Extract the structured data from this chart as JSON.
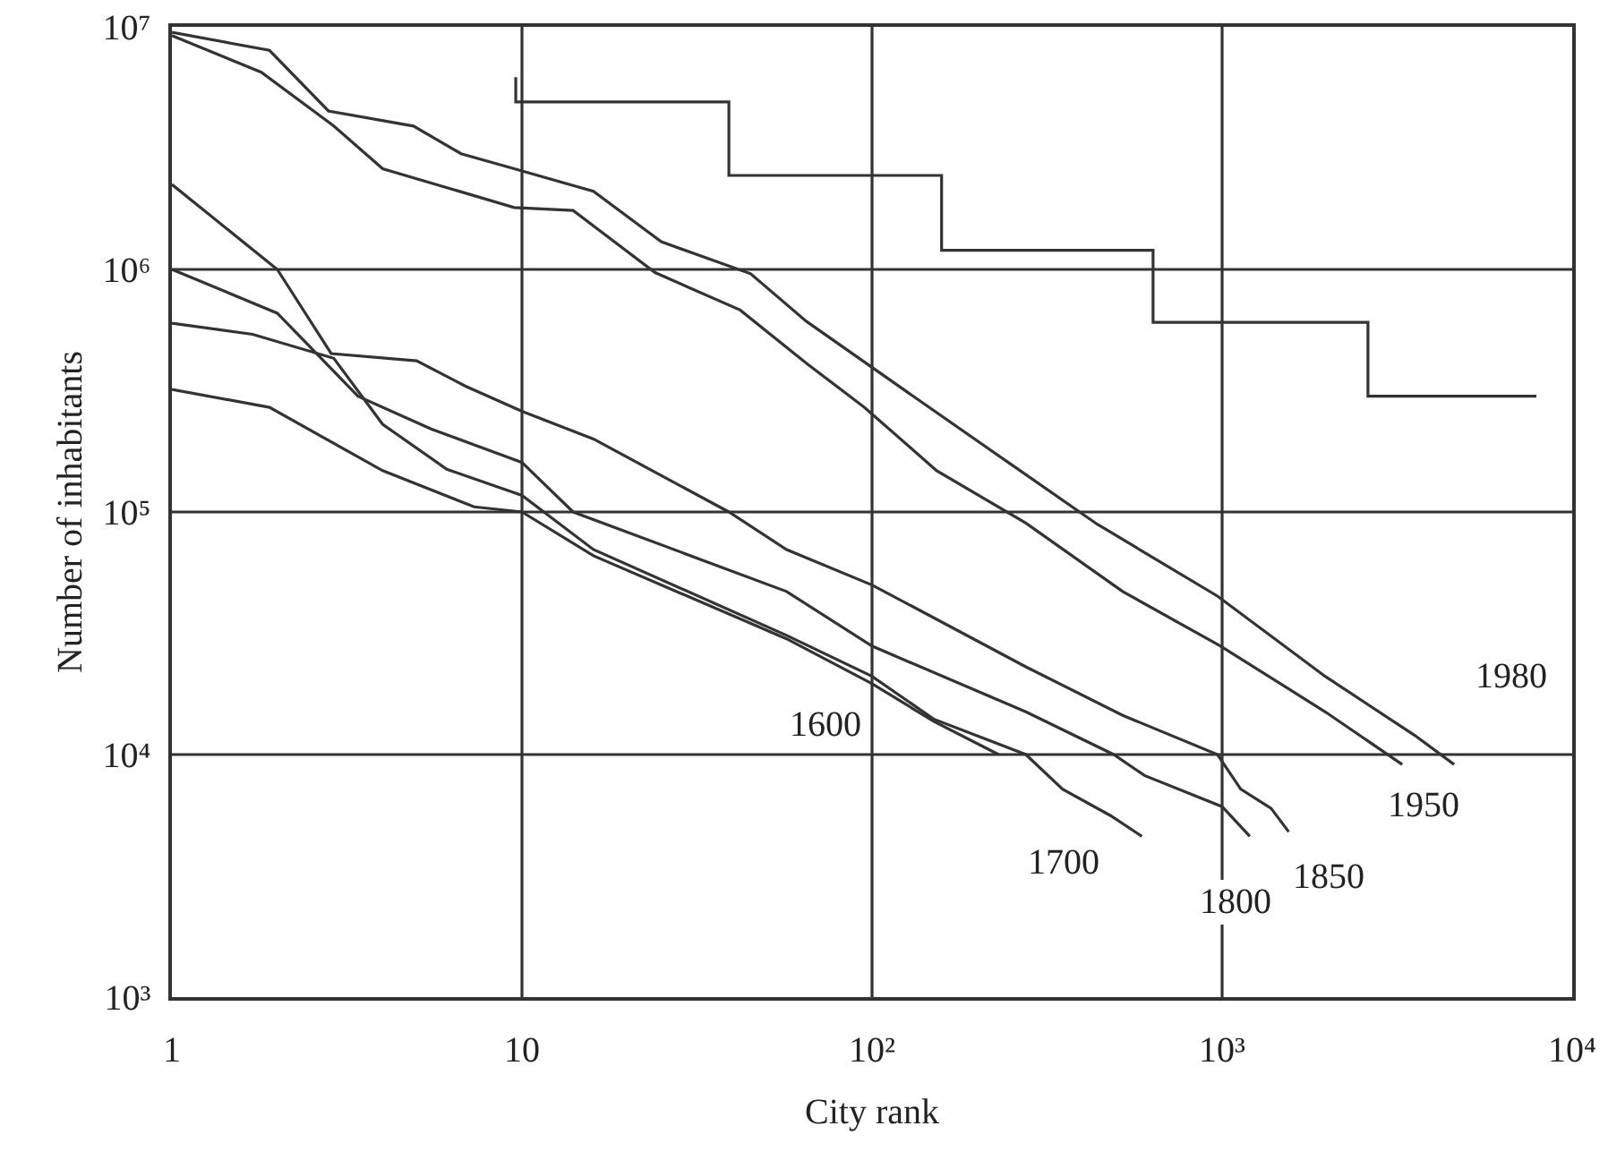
{
  "chart_data": {
    "type": "line",
    "xlabel": "City rank",
    "ylabel": "Number of inhabitants",
    "log": "xy",
    "legend": false,
    "marker": "none",
    "line_style": "solid",
    "xlim": [
      1,
      10000
    ],
    "ylim": [
      1000,
      10000000
    ],
    "xticks": [
      1,
      10,
      {
        "value": 100,
        "label": "10²"
      },
      {
        "value": 1000,
        "label": "10³"
      },
      {
        "value": 10000,
        "label": "10⁴"
      }
    ],
    "yticks": [
      {
        "value": 1000,
        "label": "10³"
      },
      {
        "value": 10000,
        "label": "10⁴"
      },
      {
        "value": 100000,
        "label": "10⁵"
      },
      {
        "value": 1000000,
        "label": "10⁶"
      },
      {
        "value": 10000000,
        "label": "10⁷"
      }
    ],
    "ref_lines": [
      {
        "axis": "x",
        "value": 10,
        "color": "#333333"
      },
      {
        "axis": "x",
        "value": 100,
        "color": "#333333"
      },
      {
        "axis": "x",
        "value": 1000,
        "color": "#333333"
      },
      {
        "axis": "y",
        "value": 10000,
        "color": "#333333"
      },
      {
        "axis": "y",
        "value": 100000,
        "color": "#333333"
      },
      {
        "axis": "y",
        "value": 1000000,
        "color": "#333333"
      }
    ],
    "series": [
      {
        "name": "1980",
        "color": "#333333",
        "x": [
          1,
          1.9,
          2.8,
          4.9,
          6.7,
          9.5,
          16,
          25,
          45,
          65,
          127,
          245,
          440,
          970,
          1970,
          3550,
          4600
        ],
        "values": [
          9500000,
          8000000,
          4500000,
          3900000,
          3000000,
          2600000,
          2100000,
          1300000,
          960000,
          610000,
          310000,
          160000,
          89000,
          45000,
          21000,
          12000,
          9100
        ]
      },
      {
        "name": "1950",
        "color": "#333333",
        "x": [
          1,
          1.8,
          2.9,
          4,
          9.5,
          14,
          24,
          42,
          65,
          95,
          153,
          275,
          520,
          990,
          1970,
          3270
        ],
        "values": [
          9200000,
          6500000,
          3900000,
          2600000,
          1800000,
          1750000,
          970000,
          680000,
          410000,
          270000,
          148000,
          90000,
          47000,
          28000,
          15000,
          9100
        ]
      },
      {
        "name": "1850",
        "color": "#333333",
        "x": [
          1,
          2,
          2.85,
          5,
          6.9,
          10,
          16,
          39,
          57,
          100,
          275,
          520,
          970,
          1130,
          1380,
          1550
        ],
        "values": [
          2240000,
          1000000,
          450000,
          420000,
          330000,
          260000,
          200000,
          100000,
          70000,
          50000,
          23000,
          14500,
          10000,
          7200,
          6000,
          4800
        ]
      },
      {
        "name": "1800",
        "color": "#333333",
        "x": [
          1,
          2,
          3.4,
          5.5,
          10,
          14,
          57,
          100,
          275,
          490,
          600,
          1000,
          1200
        ],
        "values": [
          1000000,
          660000,
          300000,
          220000,
          160000,
          100000,
          47000,
          28000,
          15000,
          10000,
          8200,
          6100,
          4600
        ]
      },
      {
        "name": "1700",
        "color": "#333333",
        "x": [
          1,
          1.7,
          2.9,
          4,
          6.1,
          10,
          16,
          57,
          100,
          150,
          275,
          350,
          480,
          590
        ],
        "values": [
          600000,
          540000,
          430000,
          230000,
          150000,
          117000,
          70000,
          31000,
          21000,
          14000,
          10000,
          7200,
          5600,
          4600
        ]
      },
      {
        "name": "1600",
        "color": "#333333",
        "x": [
          1,
          1.9,
          4,
          7.3,
          10,
          16,
          57,
          100,
          150,
          230
        ],
        "values": [
          320000,
          270000,
          148000,
          105000,
          100000,
          66000,
          30000,
          19600,
          13700,
          10000
        ]
      },
      {
        "color": "#333333",
        "x": [
          9.6,
          9.6,
          39,
          39,
          158,
          158,
          635,
          635,
          2610,
          2610,
          7900
        ],
        "values": [
          6200000,
          4900000,
          4900000,
          2440000,
          2440000,
          1200000,
          1200000,
          605000,
          605000,
          300000,
          300000
        ]
      }
    ]
  }
}
